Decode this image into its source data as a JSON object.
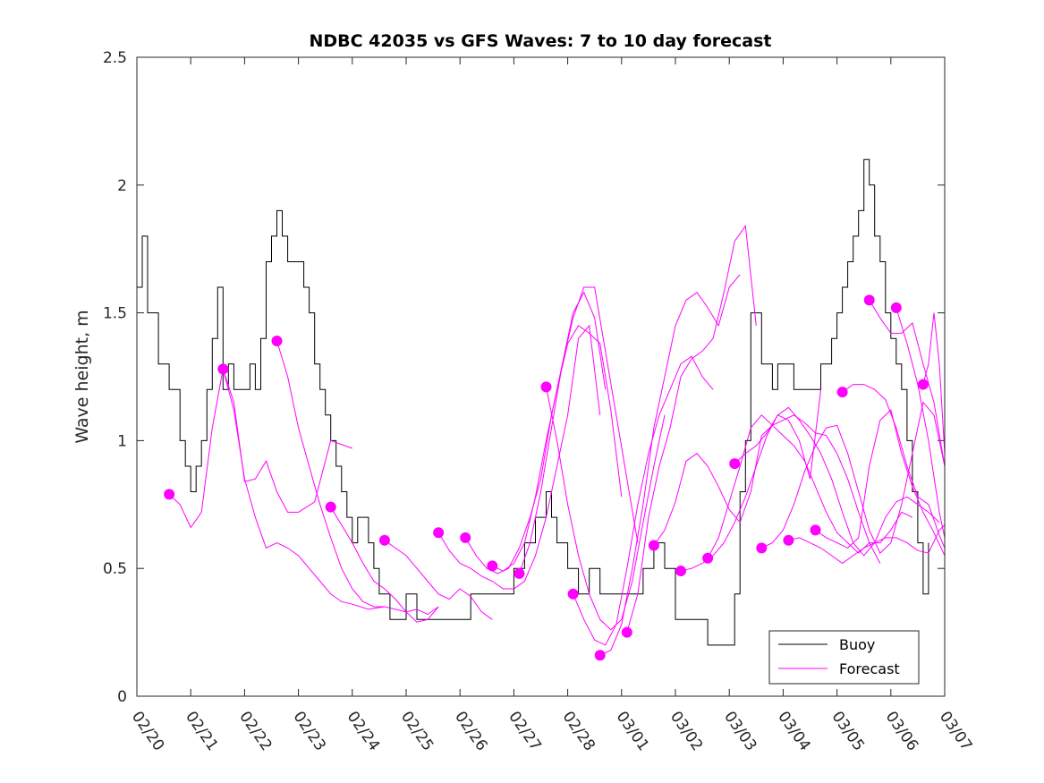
{
  "chart_data": {
    "type": "line",
    "title": "NDBC 42035 vs GFS Waves: 7 to 10 day forecast",
    "xlabel": "",
    "ylabel": "Wave height, m",
    "xlim": [
      0,
      15
    ],
    "ylim": [
      0,
      2.5
    ],
    "x_ticks": [
      0,
      1,
      2,
      3,
      4,
      5,
      6,
      7,
      8,
      9,
      10,
      11,
      12,
      13,
      14,
      15
    ],
    "x_tick_labels": [
      "02/20",
      "02/21",
      "02/22",
      "02/23",
      "02/24",
      "02/25",
      "02/26",
      "02/27",
      "02/28",
      "03/01",
      "03/02",
      "03/03",
      "03/04",
      "03/05",
      "03/06",
      "03/07"
    ],
    "y_ticks": [
      0,
      0.5,
      1,
      1.5,
      2,
      2.5
    ],
    "y_tick_labels": [
      "0",
      "0.5",
      "1",
      "1.5",
      "2",
      "2.5"
    ],
    "legend": {
      "position": "bottom-right",
      "entries": [
        "Buoy",
        "Forecast"
      ]
    },
    "colors": {
      "buoy": "#000000",
      "forecast": "#ff00ff",
      "axis": "#262626"
    },
    "buoy": {
      "name": "Buoy",
      "x": [
        0,
        0.1,
        0.2,
        0.3,
        0.4,
        0.5,
        0.6,
        0.7,
        0.8,
        0.9,
        1.0,
        1.1,
        1.2,
        1.3,
        1.4,
        1.5,
        1.6,
        1.7,
        1.8,
        1.9,
        2.0,
        2.1,
        2.2,
        2.3,
        2.4,
        2.5,
        2.6,
        2.7,
        2.8,
        2.9,
        3.0,
        3.1,
        3.2,
        3.3,
        3.4,
        3.5,
        3.6,
        3.7,
        3.8,
        3.9,
        4.0,
        4.1,
        4.2,
        4.3,
        4.4,
        4.5,
        4.6,
        4.7,
        4.8,
        4.9,
        5.0,
        5.2,
        5.4,
        5.6,
        5.8,
        6.0,
        6.2,
        6.4,
        6.6,
        6.8,
        7.0,
        7.2,
        7.3,
        7.4,
        7.5,
        7.6,
        7.7,
        7.8,
        7.9,
        8.0,
        8.2,
        8.4,
        8.6,
        8.8,
        9.0,
        9.2,
        9.4,
        9.6,
        9.8,
        10.0,
        10.2,
        10.4,
        10.6,
        10.8,
        11.0,
        11.1,
        11.2,
        11.3,
        11.4,
        11.5,
        11.6,
        11.7,
        11.8,
        11.9,
        12.0,
        12.2,
        12.4,
        12.6,
        12.7,
        12.8,
        12.9,
        13.0,
        13.1,
        13.2,
        13.3,
        13.4,
        13.5,
        13.6,
        13.7,
        13.8,
        13.9,
        14.0,
        14.1,
        14.2,
        14.3,
        14.4,
        14.5,
        14.6,
        14.7
      ],
      "values": [
        1.6,
        1.8,
        1.5,
        1.5,
        1.3,
        1.3,
        1.2,
        1.2,
        1.0,
        0.9,
        0.8,
        0.9,
        1.0,
        1.2,
        1.4,
        1.6,
        1.2,
        1.3,
        1.2,
        1.2,
        1.2,
        1.3,
        1.2,
        1.4,
        1.7,
        1.8,
        1.9,
        1.8,
        1.7,
        1.7,
        1.7,
        1.6,
        1.5,
        1.3,
        1.2,
        1.1,
        1.0,
        0.9,
        0.8,
        0.7,
        0.6,
        0.7,
        0.7,
        0.6,
        0.5,
        0.4,
        0.4,
        0.3,
        0.3,
        0.3,
        0.4,
        0.3,
        0.3,
        0.3,
        0.3,
        0.3,
        0.4,
        0.4,
        0.4,
        0.4,
        0.5,
        0.6,
        0.6,
        0.7,
        0.7,
        0.8,
        0.7,
        0.6,
        0.6,
        0.5,
        0.4,
        0.5,
        0.4,
        0.4,
        0.4,
        0.4,
        0.5,
        0.6,
        0.5,
        0.3,
        0.3,
        0.3,
        0.2,
        0.2,
        0.2,
        0.4,
        0.8,
        1.0,
        1.5,
        1.5,
        1.3,
        1.3,
        1.2,
        1.3,
        1.3,
        1.2,
        1.2,
        1.2,
        1.3,
        1.3,
        1.4,
        1.5,
        1.6,
        1.7,
        1.8,
        1.9,
        2.1,
        2.0,
        1.8,
        1.7,
        1.5,
        1.4,
        1.3,
        1.2,
        1.0,
        0.8,
        0.6,
        0.4,
        0.6
      ]
    },
    "forecast": {
      "name": "Forecast",
      "series": [
        {
          "x": [
            0.6,
            0.8,
            1.0,
            1.2,
            1.4,
            1.6,
            1.8,
            2.0,
            2.2,
            2.4,
            2.6,
            2.8,
            3.0,
            3.3,
            3.6,
            4.0
          ],
          "values": [
            0.79,
            0.75,
            0.66,
            0.72,
            1.05,
            1.28,
            1.15,
            0.84,
            0.85,
            0.92,
            0.8,
            0.72,
            0.72,
            0.76,
            1.0,
            0.97
          ]
        },
        {
          "x": [
            1.6,
            1.8,
            2.0,
            2.2,
            2.4,
            2.6,
            2.8,
            3.0,
            3.2,
            3.4,
            3.6,
            3.8,
            4.0,
            4.3,
            4.6
          ],
          "values": [
            1.28,
            1.12,
            0.85,
            0.7,
            0.58,
            0.6,
            0.58,
            0.55,
            0.5,
            0.45,
            0.4,
            0.37,
            0.36,
            0.34,
            0.35
          ]
        },
        {
          "x": [
            2.6,
            2.8,
            3.0,
            3.2,
            3.4,
            3.6,
            3.8,
            4.0,
            4.2,
            4.4,
            4.6,
            4.8,
            5.0,
            5.2,
            5.4,
            5.6
          ],
          "values": [
            1.39,
            1.25,
            1.05,
            0.9,
            0.75,
            0.62,
            0.5,
            0.42,
            0.37,
            0.35,
            0.35,
            0.34,
            0.33,
            0.34,
            0.32,
            0.35
          ]
        },
        {
          "x": [
            3.6,
            3.8,
            4.0,
            4.2,
            4.4,
            4.6,
            4.8,
            5.0,
            5.2,
            5.4,
            5.6
          ],
          "values": [
            0.74,
            0.67,
            0.6,
            0.52,
            0.45,
            0.42,
            0.38,
            0.33,
            0.29,
            0.3,
            0.35
          ]
        },
        {
          "x": [
            4.6,
            4.8,
            5.0,
            5.2,
            5.4,
            5.6,
            5.8,
            6.0,
            6.2,
            6.4,
            6.6
          ],
          "values": [
            0.61,
            0.58,
            0.55,
            0.5,
            0.45,
            0.4,
            0.38,
            0.42,
            0.39,
            0.33,
            0.3
          ]
        },
        {
          "x": [
            5.6,
            5.8,
            6.0,
            6.2,
            6.4,
            6.6,
            6.8,
            7.0,
            7.2,
            7.4,
            7.6,
            7.8,
            8.0,
            8.2,
            8.4,
            8.6
          ],
          "values": [
            0.64,
            0.57,
            0.52,
            0.5,
            0.47,
            0.45,
            0.42,
            0.42,
            0.45,
            0.55,
            0.7,
            0.9,
            1.1,
            1.4,
            1.45,
            1.1
          ]
        },
        {
          "x": [
            6.1,
            6.3,
            6.5,
            6.7,
            6.9,
            7.1,
            7.3,
            7.5,
            7.7,
            7.9,
            8.1,
            8.3,
            8.5,
            8.7
          ],
          "values": [
            0.62,
            0.55,
            0.5,
            0.48,
            0.5,
            0.58,
            0.7,
            0.85,
            1.1,
            1.3,
            1.5,
            1.58,
            1.48,
            1.2
          ]
        },
        {
          "x": [
            6.6,
            6.8,
            7.0,
            7.2,
            7.4,
            7.6,
            7.8,
            8.0,
            8.2,
            8.4,
            8.6,
            8.8,
            9.0
          ],
          "values": [
            0.51,
            0.49,
            0.52,
            0.6,
            0.78,
            1.0,
            1.2,
            1.38,
            1.45,
            1.42,
            1.38,
            1.12,
            0.78
          ]
        },
        {
          "x": [
            7.1,
            7.3,
            7.5,
            7.7,
            7.9,
            8.1,
            8.3,
            8.5,
            8.7,
            8.9,
            9.1,
            9.3
          ],
          "values": [
            0.48,
            0.6,
            0.8,
            1.05,
            1.3,
            1.48,
            1.6,
            1.6,
            1.35,
            1.1,
            0.85,
            0.6
          ]
        },
        {
          "x": [
            7.6,
            7.8,
            8.0,
            8.2,
            8.4,
            8.6,
            8.8,
            9.0,
            9.2,
            9.4,
            9.6,
            9.8
          ],
          "values": [
            1.21,
            1.0,
            0.75,
            0.55,
            0.4,
            0.3,
            0.26,
            0.3,
            0.45,
            0.68,
            0.9,
            1.1
          ]
        },
        {
          "x": [
            8.1,
            8.3,
            8.5,
            8.7,
            8.9,
            9.1,
            9.3,
            9.5,
            9.7,
            9.9,
            10.1,
            10.3,
            10.5,
            10.7
          ],
          "values": [
            0.4,
            0.3,
            0.22,
            0.2,
            0.28,
            0.5,
            0.75,
            0.95,
            1.1,
            1.2,
            1.3,
            1.33,
            1.25,
            1.2
          ]
        },
        {
          "x": [
            8.6,
            8.8,
            9.0,
            9.2,
            9.4,
            9.6,
            9.8,
            10.0,
            10.2,
            10.4,
            10.6,
            10.8,
            11.0,
            11.2
          ],
          "values": [
            0.16,
            0.18,
            0.28,
            0.5,
            0.75,
            1.05,
            1.25,
            1.45,
            1.55,
            1.58,
            1.52,
            1.45,
            1.6,
            1.65
          ]
        },
        {
          "x": [
            9.1,
            9.3,
            9.5,
            9.7,
            9.9,
            10.1,
            10.3,
            10.5,
            10.7,
            10.9,
            11.1,
            11.3,
            11.5
          ],
          "values": [
            0.25,
            0.4,
            0.7,
            0.9,
            1.05,
            1.25,
            1.32,
            1.35,
            1.4,
            1.58,
            1.78,
            1.84,
            1.45
          ]
        },
        {
          "x": [
            9.6,
            9.8,
            10.0,
            10.2,
            10.4,
            10.6,
            10.8,
            11.0,
            11.2,
            11.4,
            11.6,
            11.8,
            12.0,
            12.2,
            12.4,
            12.6,
            12.8,
            13.0,
            13.2,
            13.4,
            13.6,
            13.8
          ],
          "values": [
            0.59,
            0.65,
            0.76,
            0.92,
            0.95,
            0.9,
            0.82,
            0.73,
            0.68,
            0.8,
            1.02,
            1.06,
            1.08,
            1.1,
            1.07,
            1.03,
            1.02,
            0.95,
            0.85,
            0.72,
            0.6,
            0.52
          ]
        },
        {
          "x": [
            10.1,
            10.3,
            10.5,
            10.7,
            10.9,
            11.1,
            11.3,
            11.5,
            11.7,
            11.9,
            12.1,
            12.3,
            12.5,
            12.7
          ],
          "values": [
            0.49,
            0.5,
            0.52,
            0.55,
            0.6,
            0.68,
            0.78,
            0.9,
            1.02,
            1.1,
            1.08,
            1.0,
            0.85,
            1.2
          ]
        },
        {
          "x": [
            10.6,
            10.8,
            11.0,
            11.2,
            11.4,
            11.6,
            11.8,
            12.0,
            12.2,
            12.4,
            12.6,
            12.8,
            13.0,
            13.2,
            13.4,
            13.6,
            13.8,
            14.0,
            14.2,
            14.4
          ],
          "values": [
            0.54,
            0.62,
            0.76,
            0.9,
            1.05,
            1.1,
            1.06,
            1.02,
            0.98,
            0.92,
            0.82,
            0.72,
            0.64,
            0.6,
            0.56,
            0.6,
            0.6,
            0.65,
            0.72,
            0.7
          ]
        },
        {
          "x": [
            11.1,
            11.3,
            11.5,
            11.7,
            11.9,
            12.1,
            12.3,
            12.5,
            12.7,
            12.9,
            13.1,
            13.3,
            13.5,
            13.7,
            13.9,
            14.1,
            14.3,
            14.5,
            14.7,
            14.9
          ],
          "values": [
            0.91,
            0.95,
            0.98,
            1.03,
            1.1,
            1.13,
            1.08,
            1.02,
            0.95,
            0.85,
            0.72,
            0.6,
            0.55,
            0.6,
            0.7,
            0.76,
            0.78,
            0.75,
            0.72,
            0.68
          ]
        },
        {
          "x": [
            11.6,
            11.8,
            12.0,
            12.2,
            12.4,
            12.6,
            12.8,
            13.0,
            13.2,
            13.4,
            13.6,
            13.8,
            14.0,
            14.2,
            14.4,
            14.6,
            14.8,
            15.0
          ],
          "values": [
            0.58,
            0.6,
            0.65,
            0.75,
            0.88,
            0.98,
            1.05,
            1.06,
            0.95,
            0.8,
            0.65,
            0.56,
            0.6,
            0.75,
            0.95,
            1.15,
            1.1,
            0.9
          ]
        },
        {
          "x": [
            12.1,
            12.3,
            12.5,
            12.7,
            12.9,
            13.1,
            13.3,
            13.5,
            13.7,
            13.9,
            14.1,
            14.3,
            14.5,
            14.7,
            14.9,
            15.0
          ],
          "values": [
            0.61,
            0.62,
            0.6,
            0.58,
            0.55,
            0.52,
            0.55,
            0.58,
            0.6,
            0.62,
            0.62,
            0.6,
            0.57,
            0.56,
            0.65,
            0.67
          ]
        },
        {
          "x": [
            12.6,
            12.8,
            13.0,
            13.2,
            13.4,
            13.6,
            13.8,
            14.0,
            14.2,
            14.4,
            14.6,
            14.8,
            15.0
          ],
          "values": [
            0.65,
            0.62,
            0.6,
            0.58,
            0.62,
            0.9,
            1.08,
            1.12,
            0.95,
            0.82,
            0.72,
            0.64,
            0.55
          ]
        },
        {
          "x": [
            13.1,
            13.3,
            13.5,
            13.7,
            13.9,
            14.1,
            14.3,
            14.5,
            14.7,
            14.9,
            15.0
          ],
          "values": [
            1.19,
            1.22,
            1.22,
            1.2,
            1.16,
            1.05,
            0.9,
            0.78,
            0.75,
            0.63,
            0.58
          ]
        },
        {
          "x": [
            13.6,
            13.8,
            14.0,
            14.2,
            14.4,
            14.6,
            14.8,
            15.0
          ],
          "values": [
            1.55,
            1.48,
            1.42,
            1.42,
            1.46,
            1.3,
            1.15,
            0.9
          ]
        },
        {
          "x": [
            14.1,
            14.3,
            14.5,
            14.7,
            14.9,
            15.0
          ],
          "values": [
            1.52,
            1.38,
            1.22,
            1.0,
            0.72,
            0.62
          ]
        },
        {
          "x": [
            14.6,
            14.7,
            14.8,
            14.9,
            15.0
          ],
          "values": [
            1.22,
            1.3,
            1.5,
            1.3,
            0.95
          ]
        }
      ],
      "start_points": {
        "x": [
          0.6,
          1.6,
          2.6,
          3.6,
          4.6,
          5.6,
          6.1,
          6.6,
          7.1,
          7.6,
          8.1,
          8.6,
          9.1,
          9.6,
          10.1,
          10.6,
          11.1,
          11.6,
          12.1,
          12.6,
          13.1,
          13.6,
          14.1,
          14.6
        ],
        "values": [
          0.79,
          1.28,
          1.39,
          0.74,
          0.61,
          0.64,
          0.62,
          0.51,
          0.48,
          1.21,
          0.4,
          0.16,
          0.25,
          0.59,
          0.49,
          0.54,
          0.91,
          0.58,
          0.61,
          0.65,
          1.19,
          1.55,
          1.52,
          1.22
        ]
      }
    }
  }
}
